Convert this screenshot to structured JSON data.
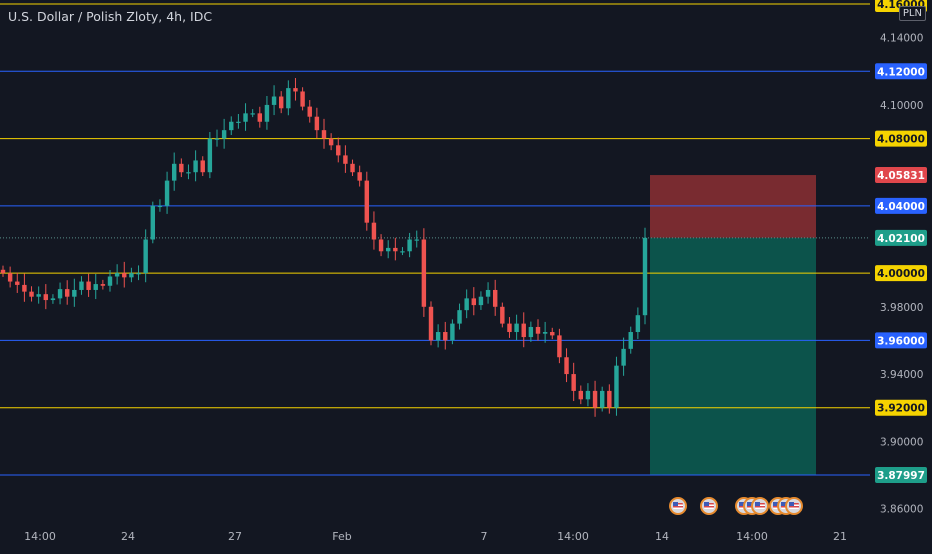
{
  "header": {
    "title": "U.S. Dollar / Polish Zloty, 4h, IDC",
    "currency": "PLN"
  },
  "colors": {
    "background": "#131722",
    "up_candle": "#26a69a",
    "down_candle": "#ef5350",
    "yellow_level": "#f5d300",
    "blue_level": "#2962ff",
    "stop_zone": "#8c2f33",
    "target_zone": "#0c5e52"
  },
  "price_axis": {
    "ticks": [
      "4.14000",
      "4.10000",
      "3.98000",
      "3.94000",
      "3.90000",
      "3.86000"
    ],
    "labels": [
      {
        "text": "4.16000",
        "value": 4.16,
        "style": "yellow"
      },
      {
        "text": "4.12000",
        "value": 4.12,
        "style": "blue"
      },
      {
        "text": "4.08000",
        "value": 4.08,
        "style": "yellow"
      },
      {
        "text": "4.05831",
        "value": 4.05831,
        "style": "red"
      },
      {
        "text": "4.04000",
        "value": 4.04,
        "style": "blue"
      },
      {
        "text": "4.02100",
        "value": 4.021,
        "style": "teal"
      },
      {
        "text": "4.00000",
        "value": 4.0,
        "style": "yellow"
      },
      {
        "text": "3.96000",
        "value": 3.96,
        "style": "blue"
      },
      {
        "text": "3.92000",
        "value": 3.92,
        "style": "yellow"
      },
      {
        "text": "3.87997",
        "value": 3.87997,
        "style": "teal"
      }
    ]
  },
  "time_axis": {
    "labels": [
      "14:00",
      "24",
      "27",
      "Feb",
      "7",
      "14:00",
      "14",
      "14:00",
      "21"
    ]
  },
  "events": {
    "icon": "us-flag-icon",
    "count": 8
  },
  "chart_data": {
    "type": "candlestick",
    "title": "U.S. Dollar / Polish Zloty, 4h, IDC",
    "ylim": [
      3.855,
      4.165
    ],
    "grid": false,
    "x_labels": [
      "14:00",
      "24",
      "27",
      "Feb",
      "7",
      "14:00",
      "14",
      "14:00",
      "21"
    ],
    "horizontal_levels": [
      {
        "value": 4.16,
        "color": "yellow"
      },
      {
        "value": 4.12,
        "color": "blue"
      },
      {
        "value": 4.08,
        "color": "yellow"
      },
      {
        "value": 4.04,
        "color": "blue"
      },
      {
        "value": 4.0,
        "color": "yellow"
      },
      {
        "value": 3.96,
        "color": "blue"
      },
      {
        "value": 3.92,
        "color": "yellow"
      },
      {
        "value": 3.88,
        "color": "blue"
      }
    ],
    "position": {
      "type": "short",
      "entry": 4.021,
      "stop": 4.05831,
      "target": 3.87997
    },
    "close_series": [
      4.0,
      3.995,
      3.993,
      3.989,
      3.986,
      3.9875,
      3.984,
      3.985,
      3.9905,
      3.986,
      3.99,
      3.995,
      3.99,
      3.9935,
      3.9925,
      3.998,
      4.0,
      3.9975,
      4.0,
      4.0,
      4.02,
      4.04,
      4.04,
      4.055,
      4.065,
      4.06,
      4.06,
      4.067,
      4.06,
      4.08,
      4.08,
      4.085,
      4.09,
      4.09,
      4.095,
      4.095,
      4.09,
      4.1,
      4.105,
      4.098,
      4.11,
      4.108,
      4.099,
      4.093,
      4.085,
      4.08,
      4.076,
      4.07,
      4.065,
      4.06,
      4.055,
      4.03,
      4.02,
      4.013,
      4.015,
      4.013,
      4.013,
      4.02,
      4.02,
      3.98,
      3.96,
      3.965,
      3.96,
      3.97,
      3.978,
      3.985,
      3.981,
      3.986,
      3.99,
      3.98,
      3.97,
      3.965,
      3.97,
      3.962,
      3.968,
      3.964,
      3.965,
      3.963,
      3.95,
      3.94,
      3.93,
      3.925,
      3.93,
      3.92,
      3.93,
      3.92,
      3.945,
      3.955,
      3.965,
      3.975,
      4.021
    ]
  }
}
